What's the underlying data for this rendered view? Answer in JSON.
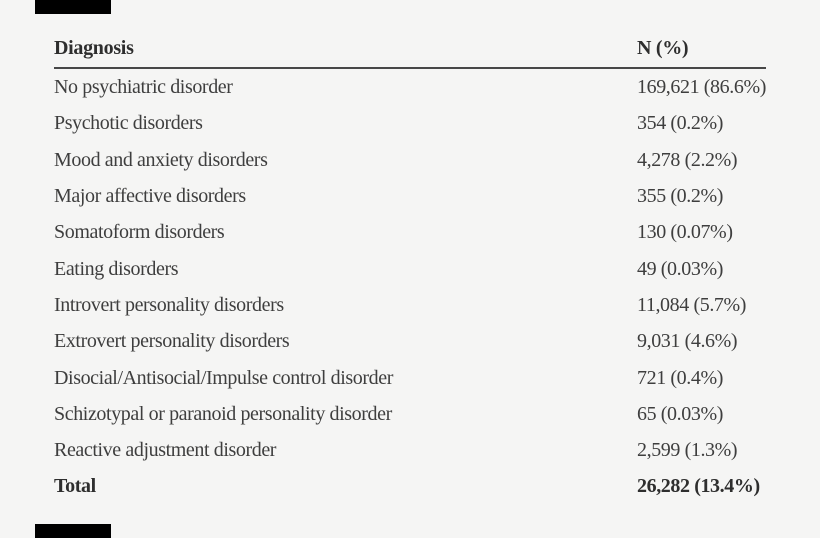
{
  "table": {
    "columns": {
      "diagnosis": "Diagnosis",
      "n": "N (%)"
    },
    "rows": [
      {
        "diagnosis": "No psychiatric disorder",
        "n": "169,621 (86.6%)"
      },
      {
        "diagnosis": "Psychotic disorders",
        "n": "354 (0.2%)"
      },
      {
        "diagnosis": "Mood and anxiety disorders",
        "n": "4,278 (2.2%)"
      },
      {
        "diagnosis": "Major affective disorders",
        "n": "355 (0.2%)"
      },
      {
        "diagnosis": "Somatoform disorders",
        "n": "130 (0.07%)"
      },
      {
        "diagnosis": "Eating disorders",
        "n": "49 (0.03%)"
      },
      {
        "diagnosis": "Introvert personality disorders",
        "n": "11,084 (5.7%)"
      },
      {
        "diagnosis": "Extrovert personality disorders",
        "n": "9,031 (4.6%)"
      },
      {
        "diagnosis": "Disocial/Antisocial/Impulse control disorder",
        "n": "721 (0.4%)"
      },
      {
        "diagnosis": "Schizotypal or paranoid personality disorder",
        "n": "65 (0.03%)"
      },
      {
        "diagnosis": "Reactive adjustment disorder",
        "n": "2,599 (1.3%)"
      },
      {
        "diagnosis": "Total",
        "n": "26,282 (13.4%)",
        "bold": true
      }
    ]
  },
  "colors": {
    "background": "#f5f5f4",
    "body_text": "#3e3e3e",
    "header_text": "#2e2e2e",
    "header_rule": "#474747",
    "redaction_bar": "#000000"
  }
}
